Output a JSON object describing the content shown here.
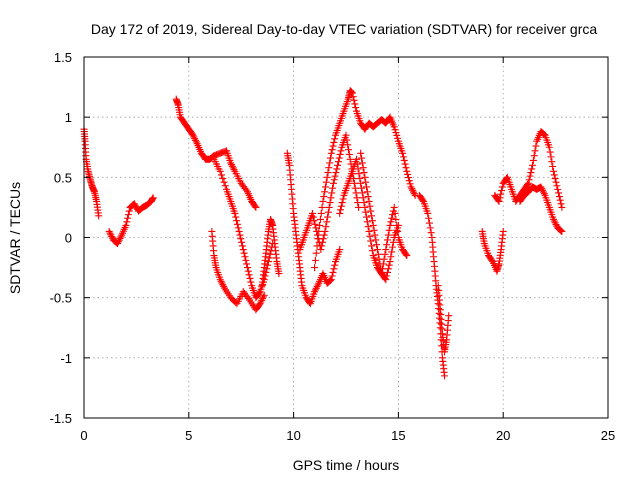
{
  "chart_data": {
    "type": "scatter",
    "title": "Day 172 of 2019, Sidereal Day-to-day VTEC variation (SDTVAR) for receiver grca",
    "xlabel": "GPS time / hours",
    "ylabel": "SDTVAR / TECUs",
    "xlim": [
      0,
      25
    ],
    "ylim": [
      -1.5,
      1.5
    ],
    "x_ticks": [
      0,
      5,
      10,
      15,
      20,
      25
    ],
    "x_tick_labels": [
      "0",
      "5",
      "10",
      "15",
      "20",
      "25"
    ],
    "y_ticks": [
      -1.5,
      -1,
      -0.5,
      0,
      0.5,
      1,
      1.5
    ],
    "y_tick_labels": [
      "-1.5",
      "-1",
      "-0.5",
      "0",
      "0.5",
      "1",
      "1.5"
    ],
    "grid": true,
    "marker": "+",
    "color": "#ff0000",
    "series": [
      {
        "name": "s1",
        "x": [
          0.0,
          0.05,
          0.1,
          0.2,
          0.3,
          0.4,
          0.5,
          0.6,
          0.7
        ],
        "y": [
          0.9,
          0.8,
          0.65,
          0.55,
          0.48,
          0.42,
          0.38,
          0.3,
          0.18
        ]
      },
      {
        "name": "s2",
        "x": [
          1.2,
          1.4,
          1.6,
          1.8,
          2.0,
          2.2,
          2.4,
          2.6,
          2.8,
          3.0,
          3.2,
          3.3
        ],
        "y": [
          0.05,
          -0.02,
          -0.05,
          0.02,
          0.1,
          0.25,
          0.28,
          0.22,
          0.25,
          0.27,
          0.3,
          0.33
        ]
      },
      {
        "name": "s3",
        "x": [
          4.4,
          4.5,
          4.6,
          4.8,
          5.0,
          5.2,
          5.4,
          5.6,
          5.8,
          6.0,
          6.2,
          6.5,
          6.8,
          7.0,
          7.2,
          7.5,
          7.8,
          8.0,
          8.2
        ],
        "y": [
          1.15,
          1.1,
          1.0,
          0.95,
          0.9,
          0.85,
          0.78,
          0.7,
          0.65,
          0.65,
          0.68,
          0.7,
          0.72,
          0.62,
          0.55,
          0.45,
          0.38,
          0.3,
          0.25
        ]
      },
      {
        "name": "s4",
        "x": [
          6.2,
          6.5,
          6.8,
          7.0,
          7.2,
          7.4,
          7.6,
          7.8,
          8.0,
          8.2,
          8.4,
          8.6,
          8.8,
          9.0
        ],
        "y": [
          0.65,
          0.55,
          0.4,
          0.3,
          0.2,
          0.05,
          -0.1,
          -0.25,
          -0.4,
          -0.5,
          -0.45,
          -0.35,
          -0.2,
          -0.05
        ]
      },
      {
        "name": "s5",
        "x": [
          6.1,
          6.2,
          6.3,
          6.5,
          6.7,
          7.0,
          7.3,
          7.6,
          7.9,
          8.2,
          8.4,
          8.6
        ],
        "y": [
          0.05,
          -0.15,
          -0.25,
          -0.35,
          -0.42,
          -0.5,
          -0.55,
          -0.45,
          -0.52,
          -0.6,
          -0.55,
          -0.48
        ]
      },
      {
        "name": "s6",
        "x": [
          8.5,
          8.6,
          8.7,
          8.8,
          8.9,
          9.0,
          9.1,
          9.2,
          9.3
        ],
        "y": [
          -0.4,
          -0.25,
          -0.1,
          0.05,
          0.15,
          0.1,
          -0.05,
          -0.2,
          -0.3
        ]
      },
      {
        "name": "s7",
        "x": [
          9.7,
          9.8,
          9.9,
          10.0,
          10.1,
          10.2,
          10.3,
          10.4,
          10.6,
          10.8,
          11.0,
          11.2,
          11.4,
          11.6,
          11.8,
          12.0,
          12.2
        ],
        "y": [
          0.7,
          0.6,
          0.4,
          0.2,
          0.05,
          -0.1,
          -0.25,
          -0.4,
          -0.5,
          -0.55,
          -0.45,
          -0.38,
          -0.3,
          -0.38,
          -0.35,
          -0.2,
          -0.1
        ]
      },
      {
        "name": "s8",
        "x": [
          10.3,
          10.5,
          10.7,
          10.9,
          11.1,
          11.3,
          11.5,
          11.7,
          11.9,
          12.1,
          12.3,
          12.5,
          12.7,
          12.9,
          13.1
        ],
        "y": [
          -0.1,
          0.0,
          0.1,
          0.2,
          0.05,
          -0.1,
          0.05,
          0.25,
          0.45,
          0.6,
          0.75,
          0.85,
          0.65,
          0.45,
          0.25
        ]
      },
      {
        "name": "s9",
        "x": [
          11.0,
          11.2,
          11.4,
          11.6,
          11.8,
          12.0,
          12.2,
          12.4,
          12.6,
          12.7,
          12.8,
          13.0,
          13.2,
          13.4,
          13.6,
          13.8,
          14.0,
          14.2,
          14.4,
          14.6,
          14.8,
          15.0,
          15.2,
          15.4,
          15.6,
          15.8
        ],
        "y": [
          -0.25,
          0.05,
          0.3,
          0.5,
          0.7,
          0.85,
          0.95,
          1.05,
          1.15,
          1.22,
          1.2,
          1.05,
          0.95,
          0.9,
          0.95,
          0.92,
          0.95,
          0.98,
          0.95,
          1.0,
          0.92,
          0.8,
          0.7,
          0.55,
          0.42,
          0.35
        ]
      },
      {
        "name": "s10",
        "x": [
          12.2,
          12.4,
          12.6,
          12.8,
          13.0,
          13.2,
          13.4,
          13.6,
          13.8,
          14.0,
          14.2,
          14.4,
          14.6,
          14.8,
          15.0,
          15.2,
          15.4
        ],
        "y": [
          0.2,
          0.35,
          0.45,
          0.55,
          0.65,
          0.45,
          0.25,
          0.05,
          -0.15,
          -0.25,
          -0.3,
          -0.1,
          0.1,
          0.25,
          0.0,
          -0.1,
          -0.15
        ]
      },
      {
        "name": "s11",
        "x": [
          13.2,
          13.4,
          13.6,
          13.8,
          14.0,
          14.2,
          14.4,
          14.6,
          14.8,
          15.0
        ],
        "y": [
          0.7,
          0.5,
          0.3,
          0.1,
          -0.1,
          -0.3,
          -0.35,
          -0.2,
          0.0,
          0.1
        ]
      },
      {
        "name": "s12",
        "x": [
          16.0,
          16.2,
          16.4,
          16.6,
          16.7,
          16.8,
          16.9,
          17.0,
          17.1,
          17.2
        ],
        "y": [
          0.35,
          0.3,
          0.2,
          0.0,
          -0.2,
          -0.4,
          -0.55,
          -0.75,
          -1.0,
          -1.15
        ]
      },
      {
        "name": "s13",
        "x": [
          16.9,
          17.0,
          17.1,
          17.2,
          17.3,
          17.4
        ],
        "y": [
          -0.4,
          -0.6,
          -0.8,
          -0.95,
          -0.85,
          -0.65
        ]
      },
      {
        "name": "s14",
        "x": [
          19.0,
          19.1,
          19.3,
          19.5,
          19.7,
          19.8,
          19.9,
          20.0
        ],
        "y": [
          0.05,
          -0.05,
          -0.15,
          -0.2,
          -0.28,
          -0.22,
          -0.1,
          0.05
        ]
      },
      {
        "name": "s15",
        "x": [
          19.6,
          19.8,
          20.0,
          20.2,
          20.4,
          20.6,
          20.8,
          21.0,
          21.2,
          21.4,
          21.6,
          21.8,
          22.0,
          22.2,
          22.4,
          22.6,
          22.8
        ],
        "y": [
          0.35,
          0.3,
          0.45,
          0.5,
          0.4,
          0.3,
          0.35,
          0.4,
          0.45,
          0.6,
          0.8,
          0.88,
          0.85,
          0.75,
          0.55,
          0.4,
          0.25
        ]
      },
      {
        "name": "s16",
        "x": [
          20.8,
          21.0,
          21.2,
          21.4,
          21.6,
          21.8,
          22.0,
          22.2,
          22.4,
          22.6,
          22.8
        ],
        "y": [
          0.3,
          0.35,
          0.38,
          0.42,
          0.4,
          0.42,
          0.35,
          0.25,
          0.15,
          0.08,
          0.05
        ]
      }
    ]
  }
}
